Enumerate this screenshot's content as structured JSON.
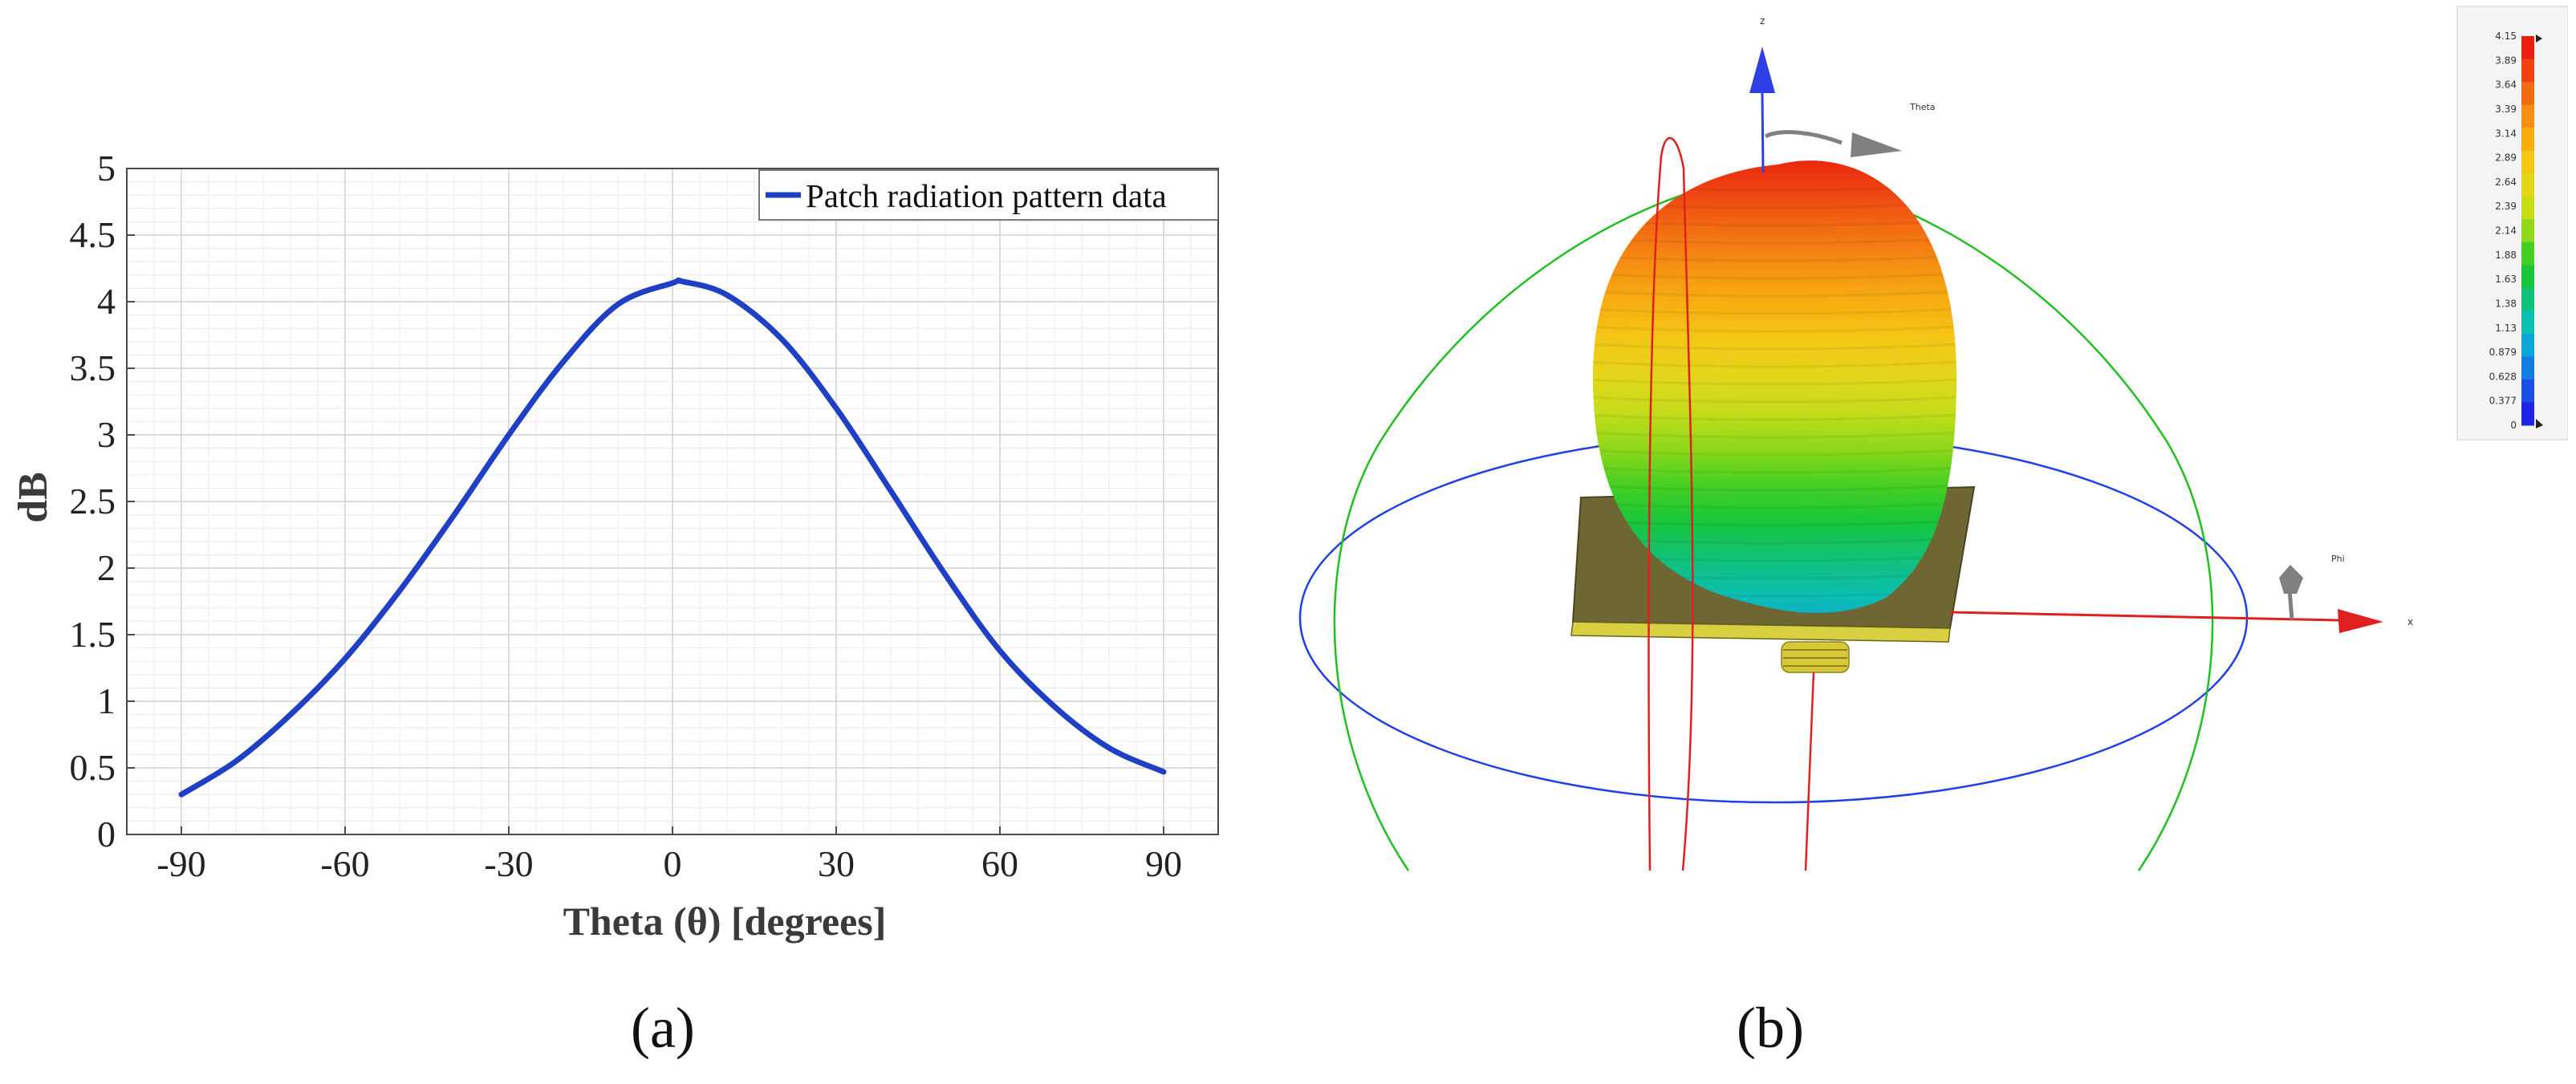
{
  "figure": {
    "caption_a": "(a)",
    "caption_b": "(b)"
  },
  "chart_data": {
    "type": "line",
    "title": "",
    "xlabel": "Theta (θ) [degrees]",
    "ylabel": "dB",
    "xlim": [
      -100,
      100
    ],
    "ylim": [
      0,
      5
    ],
    "xticks": [
      -90,
      -60,
      -30,
      0,
      30,
      60,
      90
    ],
    "xtick_labels": [
      "-90",
      "-60",
      "-30",
      "0",
      "30",
      "60",
      "90"
    ],
    "yticks": [
      0,
      0.5,
      1,
      1.5,
      2,
      2.5,
      3,
      3.5,
      4,
      4.5,
      5
    ],
    "ytick_labels": [
      "0",
      "0.5",
      "1",
      "1.5",
      "2",
      "2.5",
      "3",
      "3.5",
      "4",
      "4.5",
      "5"
    ],
    "grid": true,
    "minor_grid": true,
    "legend_position": "top-right",
    "series": [
      {
        "name": "Patch radiation pattern data",
        "color": "#1f3fc4",
        "x": [
          -90,
          -80,
          -70,
          -60,
          -50,
          -40,
          -30,
          -20,
          -10,
          0,
          2,
          10,
          20,
          30,
          40,
          50,
          60,
          70,
          80,
          90
        ],
        "y": [
          0.3,
          0.55,
          0.9,
          1.32,
          1.83,
          2.4,
          3.0,
          3.55,
          3.98,
          4.14,
          4.15,
          4.05,
          3.72,
          3.2,
          2.58,
          1.95,
          1.38,
          0.96,
          0.65,
          0.47
        ]
      }
    ]
  },
  "pattern3d": {
    "axis_labels": {
      "z": "z",
      "x": "x",
      "theta": "Theta",
      "phi": "Phi"
    },
    "colorbar": {
      "values": [
        "4.15",
        "3.89",
        "3.64",
        "3.39",
        "3.14",
        "2.89",
        "2.64",
        "2.39",
        "2.14",
        "1.88",
        "1.63",
        "1.38",
        "1.13",
        "0.879",
        "0.628",
        "0.377",
        "0"
      ],
      "colors": [
        "#e8200f",
        "#ee4212",
        "#f26a12",
        "#f58e12",
        "#f7ad12",
        "#f4c616",
        "#e4d61a",
        "#c6dc1a",
        "#8fd81a",
        "#45cf22",
        "#18c63c",
        "#10c27a",
        "#0cbeb4",
        "#0ca6d6",
        "#127ce0",
        "#1a4ee4",
        "#1f24e4"
      ]
    },
    "colors": {
      "sphere_axis": "#2040e8",
      "theta_arc": "#20c020",
      "x_axis": "#e02020",
      "z_axis": "#2f3fe6",
      "substrate": "#6e6633",
      "substrate_edge": "#d8d040",
      "connector": "#d8c838"
    }
  }
}
